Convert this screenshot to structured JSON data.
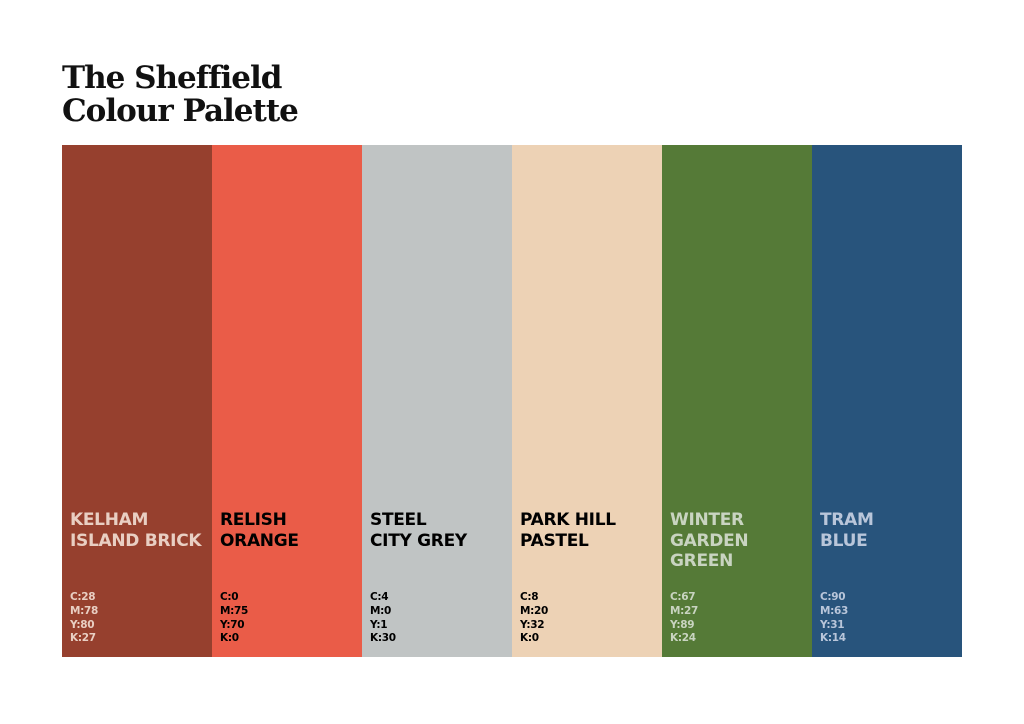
{
  "title": {
    "line1": "The Sheffield",
    "line2": "Colour Palette"
  },
  "swatches": [
    {
      "name": [
        "Kelham",
        "Island Brick"
      ],
      "color": "#96402e",
      "text_color": "#e9cfc3",
      "cmyk": [
        "C:28",
        "M:78",
        "Y:80",
        "K:27"
      ]
    },
    {
      "name": [
        "Relish",
        "Orange"
      ],
      "color": "#ea5c48",
      "text_color": "#000000",
      "cmyk": [
        "C:0",
        "M:75",
        "Y:70",
        "K:0"
      ]
    },
    {
      "name": [
        "Steel",
        "City Grey"
      ],
      "color": "#c0c4c4",
      "text_color": "#000000",
      "cmyk": [
        "C:4",
        "M:0",
        "Y:1",
        "K:30"
      ]
    },
    {
      "name": [
        "Park Hill",
        "Pastel"
      ],
      "color": "#edd2b5",
      "text_color": "#000000",
      "cmyk": [
        "C:8",
        "M:20",
        "Y:32",
        "K:0"
      ]
    },
    {
      "name": [
        "Winter",
        "Garden",
        "Green"
      ],
      "color": "#557a37",
      "text_color": "#c9d4c1",
      "cmyk": [
        "C:67",
        "M:27",
        "Y:89",
        "K:24"
      ]
    },
    {
      "name": [
        "Tram",
        "Blue"
      ],
      "color": "#28547c",
      "text_color": "#b9c6da",
      "cmyk": [
        "C:90",
        "M:63",
        "Y:31",
        "K:14"
      ]
    }
  ]
}
